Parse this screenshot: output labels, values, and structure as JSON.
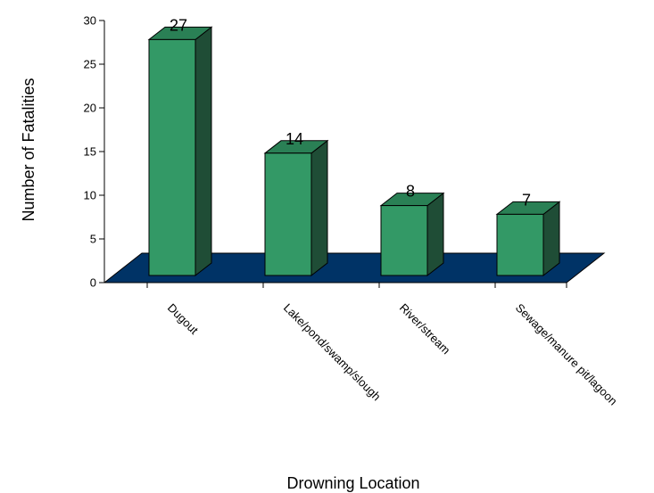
{
  "chart_data": {
    "type": "bar",
    "title": "",
    "xlabel": "Drowning Location",
    "ylabel": "Number of Fatalities",
    "categories": [
      "Dugout",
      "Lake/pond/swamp/slough",
      "River/stream",
      "Sewage/manure pit/lagoon"
    ],
    "values": [
      27,
      14,
      8,
      7
    ],
    "ylim": [
      0,
      30
    ],
    "yticks": [
      "0",
      "5",
      "10",
      "15",
      "20",
      "25",
      "30"
    ],
    "grid": false,
    "legend": "none",
    "data_labels": [
      "27",
      "14",
      "8",
      "7"
    ],
    "colors": {
      "bar_front": "#339966",
      "bar_top": "#2a8055",
      "bar_side": "#1f4d36",
      "floor": "#003366",
      "outline": "#000000"
    }
  }
}
